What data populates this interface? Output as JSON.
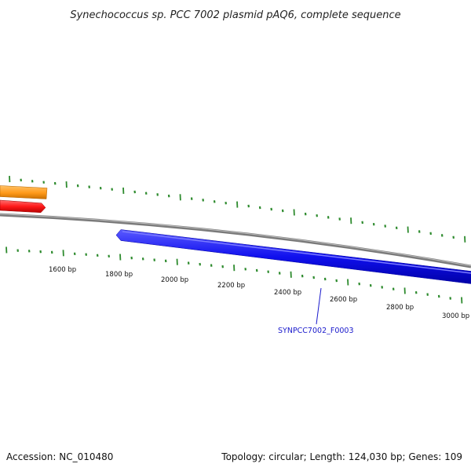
{
  "title": "Synechococcus sp. PCC 7002 plasmid pAQ6, complete sequence",
  "footer": {
    "accession": "Accession: NC_010480",
    "summary": "Topology: circular; Length: 124,030 bp; Genes: 109"
  },
  "scale_labels": [
    "1600 bp",
    "1800 bp",
    "2000 bp",
    "2200 bp",
    "2400 bp",
    "2600 bp",
    "2800 bp",
    "3000 bp"
  ],
  "gene_labels": {
    "blue_gene": "SYNPCC7002_F0003"
  },
  "colors": {
    "backbone": "#808080",
    "tick": "#2e8b2e",
    "gene_orange": "#ff9a1a",
    "gene_red": "#ff1a1a",
    "gene_blue": "#1010ee",
    "gene_label": "#1a1acc"
  }
}
